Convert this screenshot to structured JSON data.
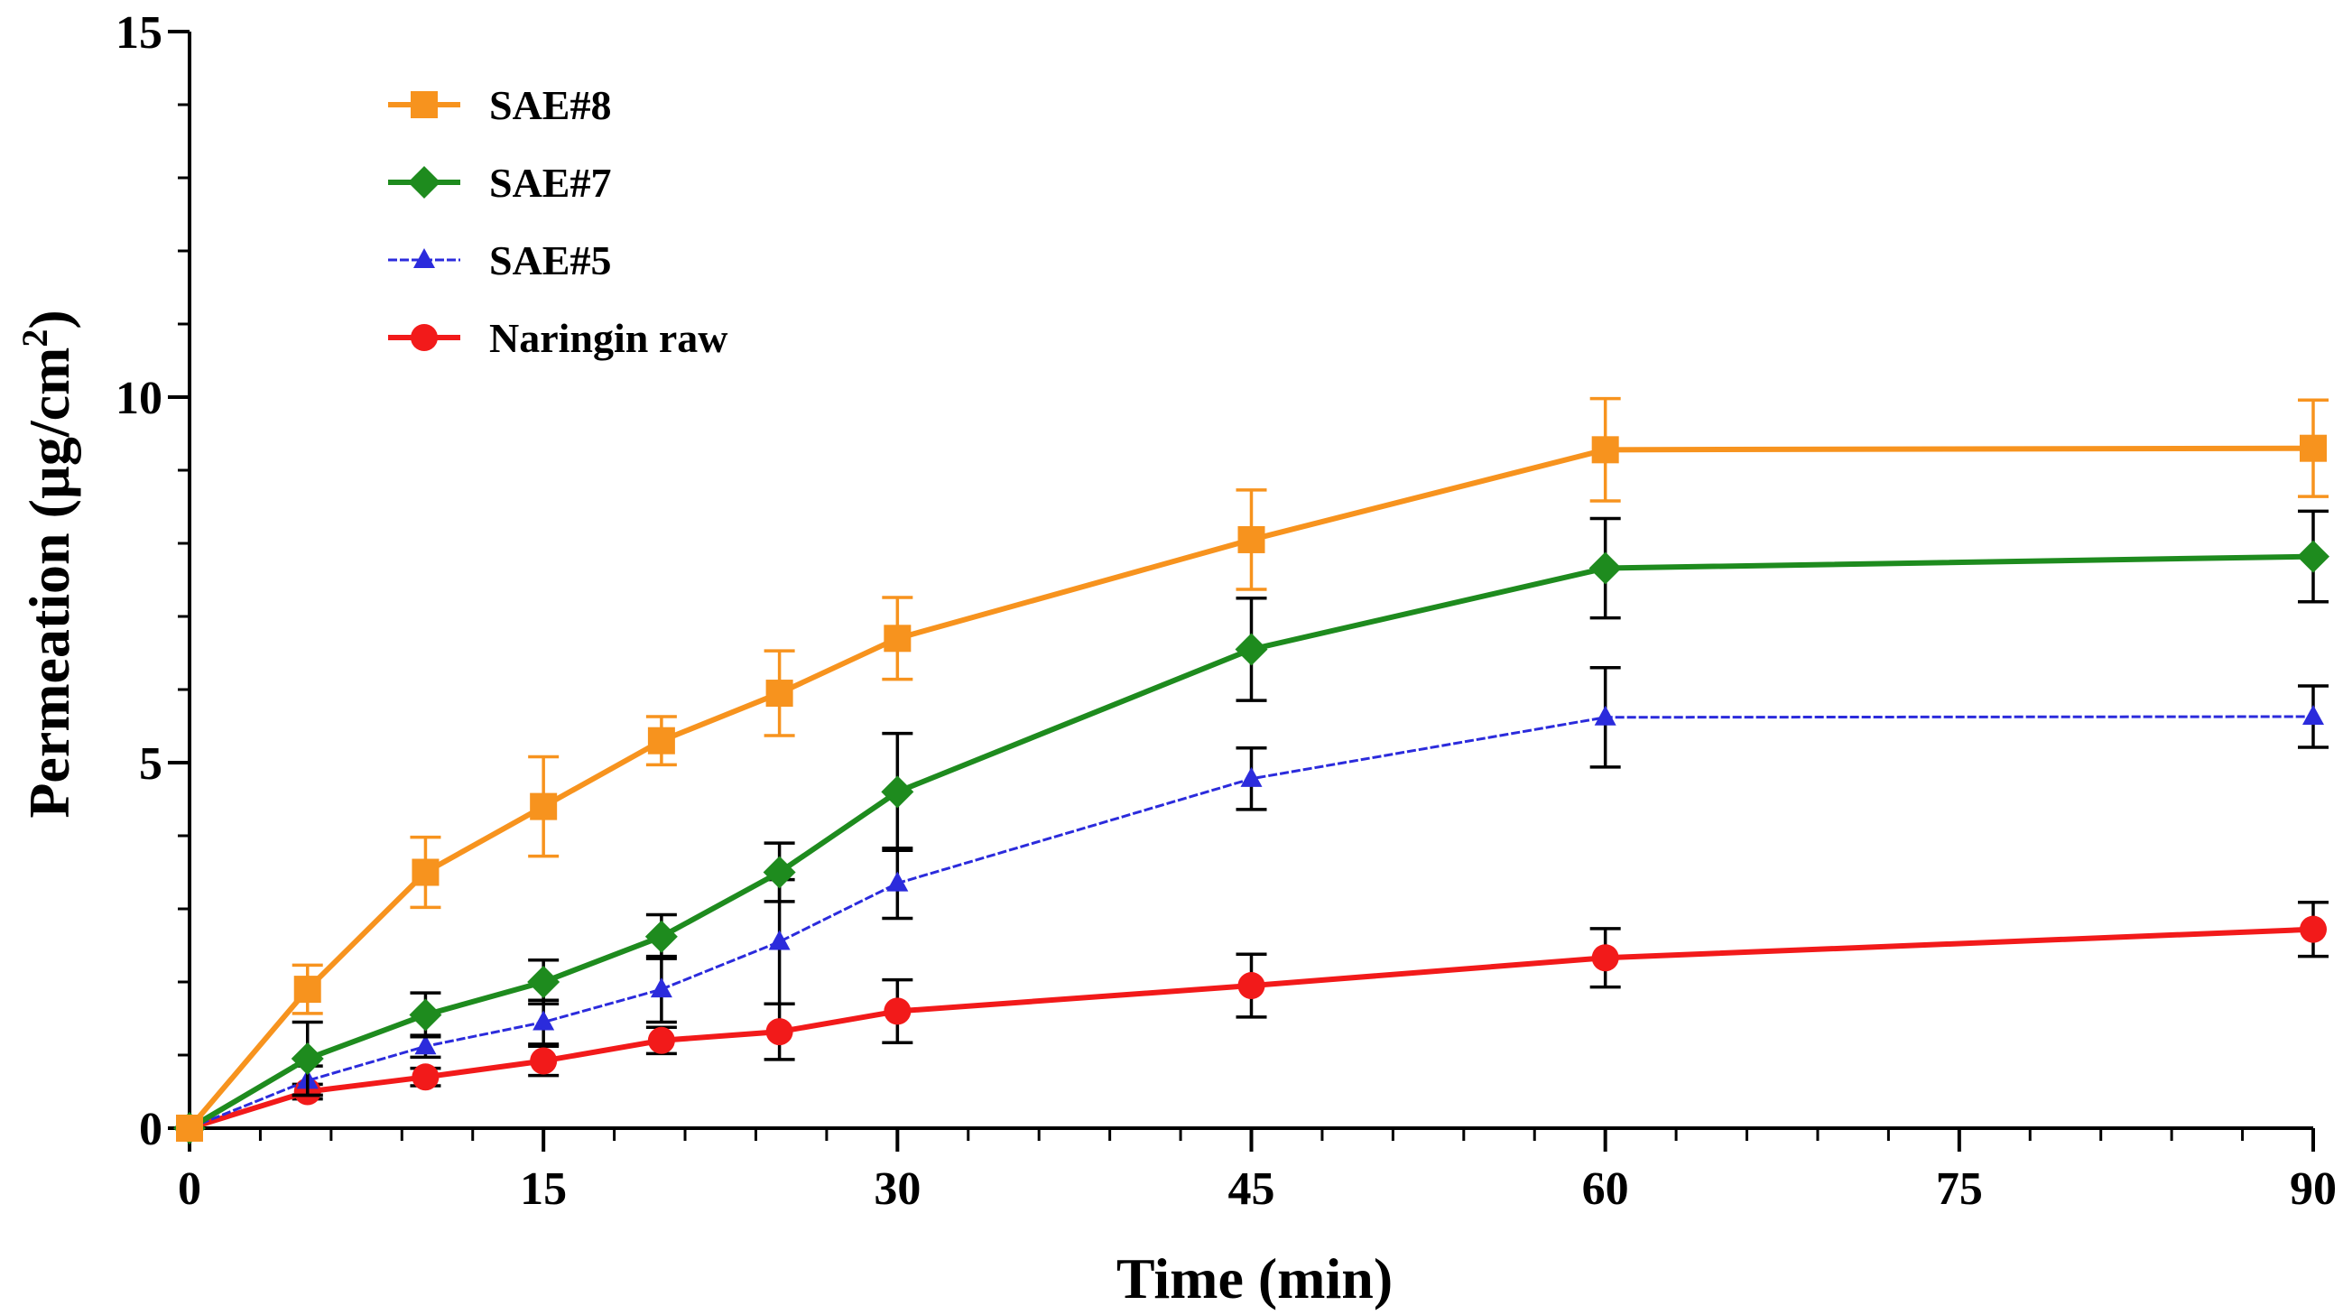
{
  "chart_data": {
    "type": "line",
    "title": "",
    "xlabel": "Time (min)",
    "ylabel_prefix": "Permeation (µg/cm",
    "ylabel_sup": "2",
    "ylabel_suffix": ")",
    "xlim": [
      0,
      90
    ],
    "ylim": [
      0,
      15
    ],
    "xticks": [
      0,
      15,
      30,
      45,
      60,
      75,
      90
    ],
    "yticks": [
      0,
      5,
      10,
      15
    ],
    "xtick_labels": [
      "0",
      "15",
      "30",
      "45",
      "60",
      "75",
      "90"
    ],
    "ytick_labels": [
      "0",
      "5",
      "10",
      "15"
    ],
    "grid": false,
    "legend_position": "top-left",
    "x": [
      0,
      5,
      10,
      15,
      20,
      25,
      30,
      45,
      60,
      90
    ],
    "series": [
      {
        "name": "SAE#8",
        "color": "#F7931E",
        "errcolor": "#F7931E",
        "marker": "square",
        "values": [
          0,
          1.9,
          3.5,
          4.4,
          5.3,
          5.95,
          6.7,
          8.05,
          9.28,
          9.3
        ],
        "errors": [
          0,
          0.33,
          0.48,
          0.68,
          0.33,
          0.58,
          0.56,
          0.68,
          0.7,
          0.66
        ]
      },
      {
        "name": "SAE#7",
        "color": "#1E8B1E",
        "errcolor": "#000000",
        "marker": "diamond",
        "values": [
          0,
          0.95,
          1.55,
          2.0,
          2.62,
          3.5,
          4.6,
          6.55,
          7.66,
          7.82
        ],
        "errors": [
          0,
          0.5,
          0.3,
          0.3,
          0.3,
          0.4,
          0.8,
          0.7,
          0.68,
          0.62
        ]
      },
      {
        "name": "SAE#5",
        "color": "#2B2BDC",
        "errcolor": "#000000",
        "marker": "triangle",
        "values": [
          0,
          0.65,
          1.12,
          1.45,
          1.9,
          2.55,
          3.35,
          4.78,
          5.62,
          5.63
        ],
        "errors": [
          0,
          0.2,
          0.15,
          0.3,
          0.45,
          0.85,
          0.48,
          0.42,
          0.68,
          0.42
        ]
      },
      {
        "name": "Naringin raw",
        "color": "#F21A1A",
        "errcolor": "#000000",
        "marker": "circle",
        "values": [
          0,
          0.5,
          0.7,
          0.92,
          1.2,
          1.32,
          1.6,
          1.95,
          2.33,
          2.72
        ],
        "errors": [
          0,
          0.1,
          0.12,
          0.2,
          0.18,
          0.38,
          0.43,
          0.43,
          0.4,
          0.37
        ]
      }
    ]
  }
}
